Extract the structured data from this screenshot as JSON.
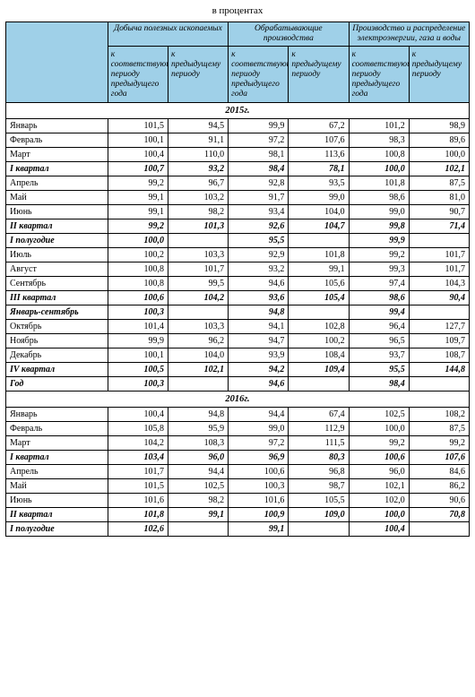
{
  "caption": "в процентах",
  "colors": {
    "header_bg": "#9fd0e8",
    "border": "#000000",
    "text": "#000000"
  },
  "groupHeaders": [
    "Добыча полезных ископаемых",
    "Обрабатывающие производства",
    "Производство и распределение электроэнергии, газа и воды"
  ],
  "subHeaders": [
    "к соответствующему периоду предыдущего года",
    "к предыдущему периоду",
    "к соответствующему периоду предыдущего года",
    "к предыдущему периоду",
    "к соответствующему периоду предыдущего года",
    "к предыдущему периоду"
  ],
  "rows": [
    {
      "type": "year",
      "label": "2015г."
    },
    {
      "type": "data",
      "label": "Январь",
      "v": [
        "101,5",
        "94,5",
        "99,9",
        "67,2",
        "101,2",
        "98,9"
      ]
    },
    {
      "type": "data",
      "label": "Февраль",
      "v": [
        "100,1",
        "91,1",
        "97,2",
        "107,6",
        "98,3",
        "89,6"
      ]
    },
    {
      "type": "data",
      "label": "Март",
      "v": [
        "100,4",
        "110,0",
        "98,1",
        "113,6",
        "100,8",
        "100,0"
      ]
    },
    {
      "type": "bold",
      "label": "I квартал",
      "v": [
        "100,7",
        "93,2",
        "98,4",
        "78,1",
        "100,0",
        "102,1"
      ]
    },
    {
      "type": "data",
      "label": "Апрель",
      "v": [
        "99,2",
        "96,7",
        "92,8",
        "93,5",
        "101,8",
        "87,5"
      ]
    },
    {
      "type": "data",
      "label": "Май",
      "v": [
        "99,1",
        "103,2",
        "91,7",
        "99,0",
        "98,6",
        "81,0"
      ]
    },
    {
      "type": "data",
      "label": "Июнь",
      "v": [
        "99,1",
        "98,2",
        "93,4",
        "104,0",
        "99,0",
        "90,7"
      ]
    },
    {
      "type": "bold",
      "label": "II квартал",
      "v": [
        "99,2",
        "101,3",
        "92,6",
        "104,7",
        "99,8",
        "71,4"
      ]
    },
    {
      "type": "bold",
      "label": "I полугодие",
      "v": [
        "100,0",
        "",
        "95,5",
        "",
        "99,9",
        ""
      ]
    },
    {
      "type": "data",
      "label": "Июль",
      "v": [
        "100,2",
        "103,3",
        "92,9",
        "101,8",
        "99,2",
        "101,7"
      ]
    },
    {
      "type": "data",
      "label": "Август",
      "v": [
        "100,8",
        "101,7",
        "93,2",
        "99,1",
        "99,3",
        "101,7"
      ]
    },
    {
      "type": "data",
      "label": "Сентябрь",
      "v": [
        "100,8",
        "99,5",
        "94,6",
        "105,6",
        "97,4",
        "104,3"
      ]
    },
    {
      "type": "bold",
      "label": "III квартал",
      "v": [
        "100,6",
        "104,2",
        "93,6",
        "105,4",
        "98,6",
        "90,4"
      ]
    },
    {
      "type": "bold",
      "label": "Январь-сентябрь",
      "v": [
        "100,3",
        "",
        "94,8",
        "",
        "99,4",
        ""
      ]
    },
    {
      "type": "data",
      "label": "Октябрь",
      "v": [
        "101,4",
        "103,3",
        "94,1",
        "102,8",
        "96,4",
        "127,7"
      ]
    },
    {
      "type": "data",
      "label": "Ноябрь",
      "v": [
        "99,9",
        "96,2",
        "94,7",
        "100,2",
        "96,5",
        "109,7"
      ]
    },
    {
      "type": "data",
      "label": "Декабрь",
      "v": [
        "100,1",
        "104,0",
        "93,9",
        "108,4",
        "93,7",
        "108,7"
      ]
    },
    {
      "type": "bold",
      "label": "IV квартал",
      "v": [
        "100,5",
        "102,1",
        "94,2",
        "109,4",
        "95,5",
        "144,8"
      ]
    },
    {
      "type": "bold",
      "label": "Год",
      "v": [
        "100,3",
        "",
        "94,6",
        "",
        "98,4",
        ""
      ]
    },
    {
      "type": "year",
      "label": "2016г."
    },
    {
      "type": "data",
      "label": "Январь",
      "v": [
        "100,4",
        "94,8",
        "94,4",
        "67,4",
        "102,5",
        "108,2"
      ]
    },
    {
      "type": "data",
      "label": "Февраль",
      "v": [
        "105,8",
        "95,9",
        "99,0",
        "112,9",
        "100,0",
        "87,5"
      ]
    },
    {
      "type": "data",
      "label": "Март",
      "v": [
        "104,2",
        "108,3",
        "97,2",
        "111,5",
        "99,2",
        "99,2"
      ]
    },
    {
      "type": "bold",
      "label": "I квартал",
      "v": [
        "103,4",
        "96,0",
        "96,9",
        "80,3",
        "100,6",
        "107,6"
      ]
    },
    {
      "type": "data",
      "label": "Апрель",
      "v": [
        "101,7",
        "94,4",
        "100,6",
        "96,8",
        "96,0",
        "84,6"
      ]
    },
    {
      "type": "data",
      "label": "Май",
      "v": [
        "101,5",
        "102,5",
        "100,3",
        "98,7",
        "102,1",
        "86,2"
      ]
    },
    {
      "type": "data",
      "label": "Июнь",
      "v": [
        "101,6",
        "98,2",
        "101,6",
        "105,5",
        "102,0",
        "90,6"
      ]
    },
    {
      "type": "bold",
      "label": "II квартал",
      "v": [
        "101,8",
        "99,1",
        "100,9",
        "109,0",
        "100,0",
        "70,8"
      ]
    },
    {
      "type": "bold",
      "label": "I полугодие",
      "v": [
        "102,6",
        "",
        "99,1",
        "",
        "100,4",
        ""
      ]
    }
  ]
}
